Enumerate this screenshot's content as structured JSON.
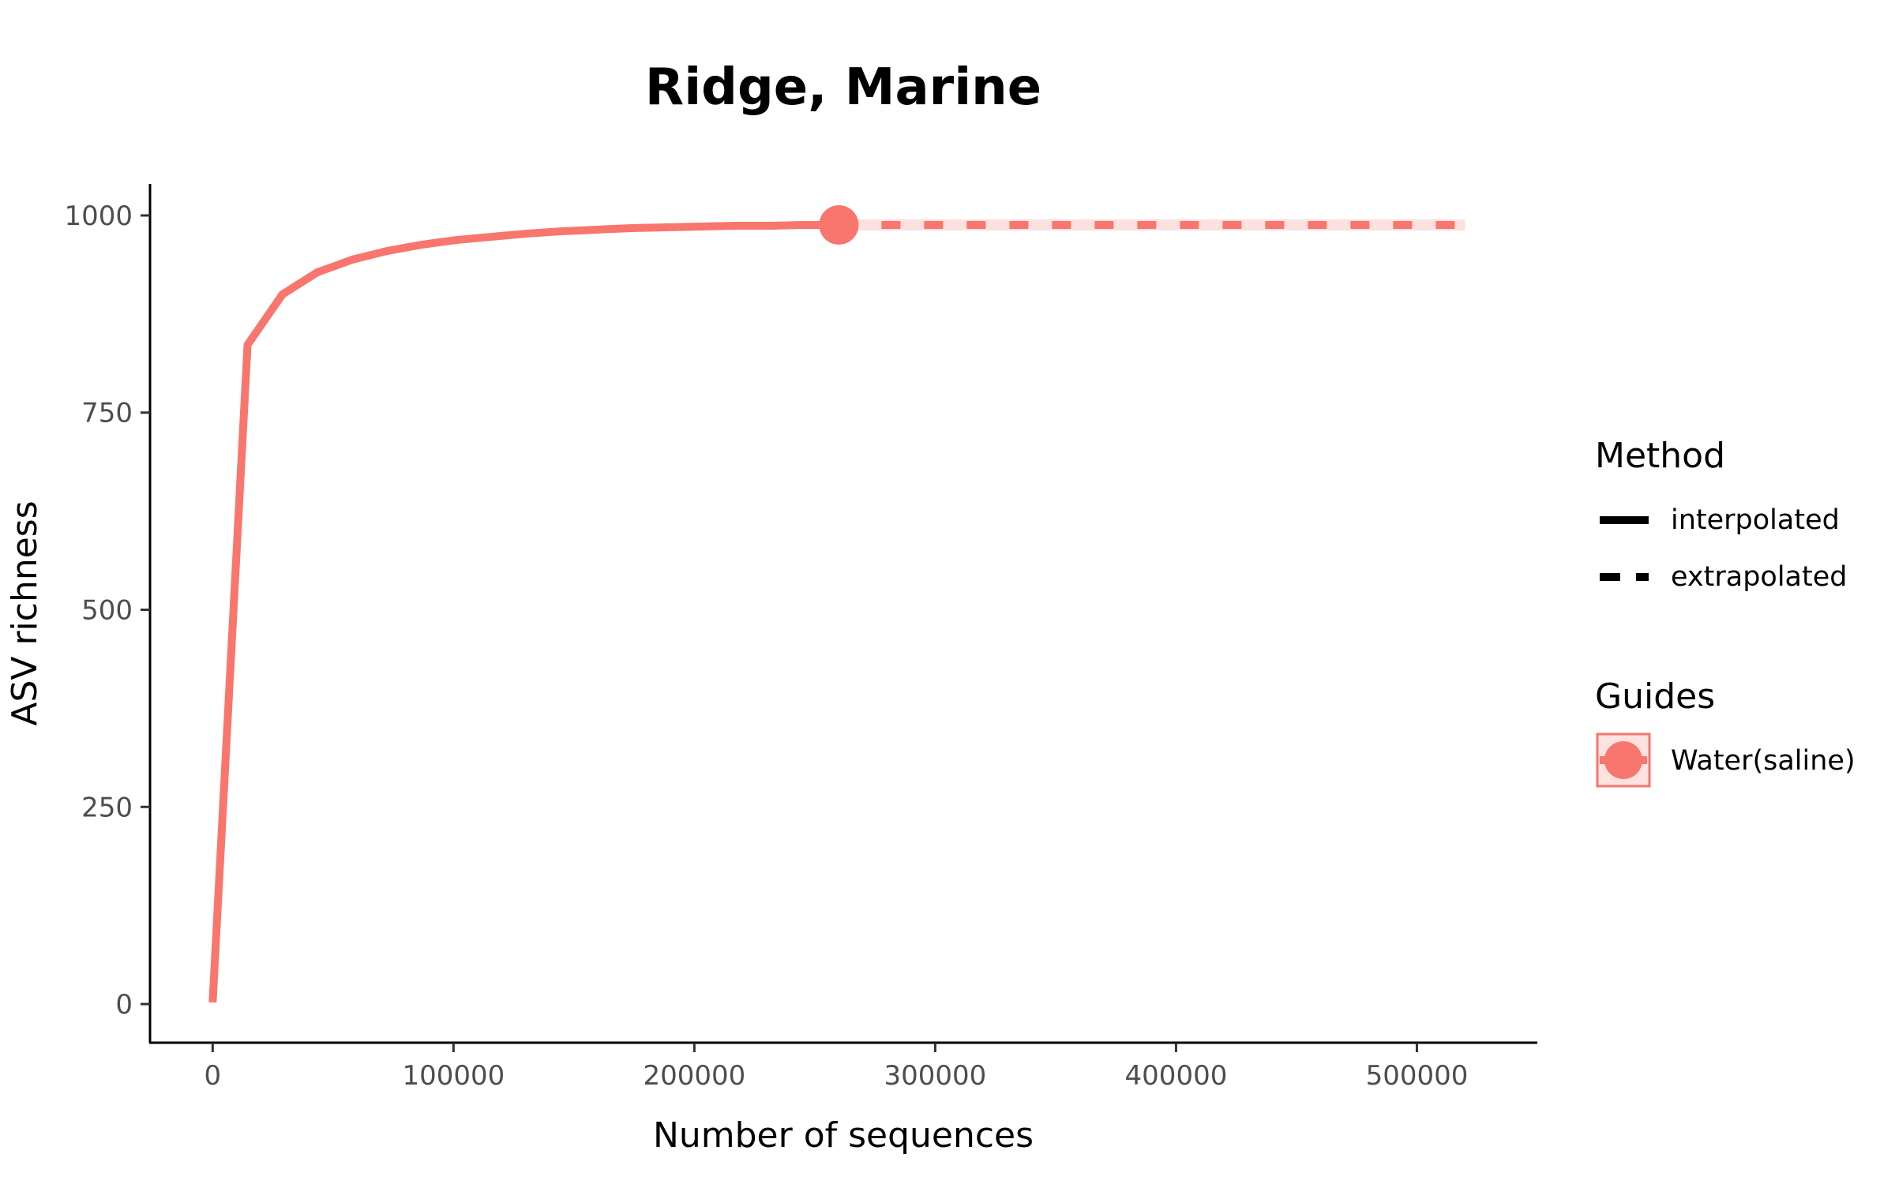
{
  "chart_data": {
    "type": "line",
    "title": "Ridge, Marine",
    "xlabel": "Number of sequences",
    "ylabel": "ASV richness",
    "xlim": [
      -26000,
      550000
    ],
    "ylim": [
      -49,
      1040
    ],
    "xticks": [
      0,
      100000,
      200000,
      300000,
      400000,
      500000
    ],
    "xtick_labels": [
      "0",
      "100000",
      "200000",
      "300000",
      "400000",
      "500000"
    ],
    "yticks": [
      0,
      250,
      500,
      750,
      1000
    ],
    "ytick_labels": [
      "0",
      "250",
      "500",
      "750",
      "1000"
    ],
    "grid": false,
    "series": [
      {
        "name": "Water(saline)",
        "color": "#F8766D",
        "observed": {
          "x": 260000,
          "y": 988
        },
        "interpolated": {
          "x": [
            1,
            14500,
            29000,
            43500,
            58000,
            72500,
            87000,
            101500,
            116000,
            130500,
            145000,
            159500,
            174000,
            188500,
            203000,
            217500,
            232000,
            246500,
            260000
          ],
          "y": [
            2,
            836,
            900,
            928,
            944,
            955,
            963,
            969,
            973,
            977,
            980,
            982,
            984,
            985,
            986,
            987,
            987,
            988,
            988
          ]
        },
        "extrapolated": {
          "x": [
            260000,
            300000,
            350000,
            400000,
            450000,
            520000
          ],
          "y": [
            988,
            988,
            988,
            988,
            988,
            988
          ]
        }
      }
    ],
    "legend": {
      "placement": "right",
      "method_title": "Method",
      "method_items": [
        "interpolated",
        "extrapolated"
      ],
      "guides_title": "Guides",
      "guides_items": [
        "Water(saline)"
      ]
    }
  }
}
